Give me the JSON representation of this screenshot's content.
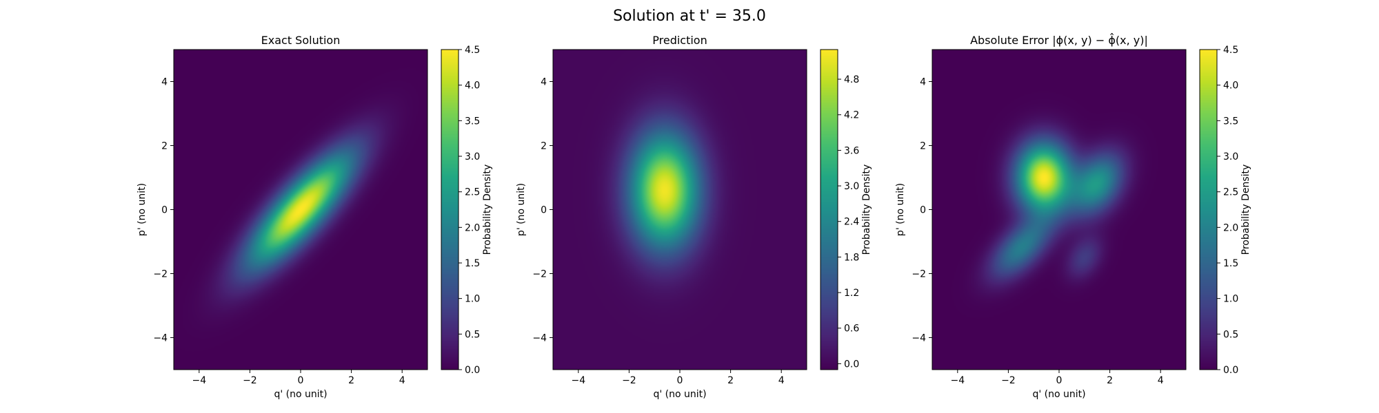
{
  "figure": {
    "suptitle": "Solution at t' = 35.0"
  },
  "colormap": "viridis",
  "chart_data": [
    {
      "type": "heatmap",
      "title": "Exact Solution",
      "xlabel": "q' (no unit)",
      "ylabel": "p' (no unit)",
      "xlim": [
        -5,
        5
      ],
      "ylim": [
        -5,
        5
      ],
      "xticks": [
        -4,
        -2,
        0,
        2,
        4
      ],
      "yticks": [
        -4,
        -2,
        0,
        2,
        4
      ],
      "colorbar": {
        "label": "Probability Density",
        "range": [
          0.0,
          4.5
        ],
        "ticks": [
          "0.0",
          "0.5",
          "1.0",
          "1.5",
          "2.0",
          "2.5",
          "3.0",
          "3.5",
          "4.0",
          "4.5"
        ]
      },
      "blobs": [
        {
          "center": [
            0.0,
            0.0
          ],
          "sigma": [
            1.8,
            0.55
          ],
          "angle_deg": 40,
          "peak": 4.5
        }
      ]
    },
    {
      "type": "heatmap",
      "title": "Prediction",
      "xlabel": "q' (no unit)",
      "ylabel": "p' (no unit)",
      "xlim": [
        -5,
        5
      ],
      "ylim": [
        -5,
        5
      ],
      "xticks": [
        -4,
        -2,
        0,
        2,
        4
      ],
      "yticks": [
        -4,
        -2,
        0,
        2,
        4
      ],
      "colorbar": {
        "label": "Probability Density",
        "range": [
          -0.1,
          5.3
        ],
        "ticks": [
          "0.0",
          "0.6",
          "1.2",
          "1.8",
          "2.4",
          "3.0",
          "3.6",
          "4.2",
          "4.8"
        ]
      },
      "blobs": [
        {
          "center": [
            -0.6,
            0.6
          ],
          "sigma": [
            0.95,
            1.25
          ],
          "angle_deg": 0,
          "peak": 5.2
        }
      ]
    },
    {
      "type": "heatmap",
      "title": "Absolute Error |ϕ(x, y) − ϕ̂(x, y)|",
      "xlabel": "q' (no unit)",
      "ylabel": "p' (no unit)",
      "xlim": [
        -5,
        5
      ],
      "ylim": [
        -5,
        5
      ],
      "xticks": [
        -4,
        -2,
        0,
        2,
        4
      ],
      "yticks": [
        -4,
        -2,
        0,
        2,
        4
      ],
      "colorbar": {
        "label": "Probability Density",
        "range": [
          0.0,
          4.5
        ],
        "ticks": [
          "0.0",
          "0.5",
          "1.0",
          "1.5",
          "2.0",
          "2.5",
          "3.0",
          "3.5",
          "4.0",
          "4.5"
        ]
      },
      "blobs": [
        {
          "center": [
            -0.6,
            1.0
          ],
          "sigma": [
            0.75,
            0.75
          ],
          "angle_deg": 0,
          "peak": 4.5
        },
        {
          "center": [
            1.5,
            0.8
          ],
          "sigma": [
            0.8,
            0.55
          ],
          "angle_deg": 40,
          "peak": 2.4
        },
        {
          "center": [
            -1.5,
            -1.2
          ],
          "sigma": [
            0.95,
            0.45
          ],
          "angle_deg": 35,
          "peak": 1.9
        },
        {
          "center": [
            1.0,
            -1.5
          ],
          "sigma": [
            0.55,
            0.38
          ],
          "angle_deg": 40,
          "peak": 0.8
        }
      ]
    }
  ]
}
